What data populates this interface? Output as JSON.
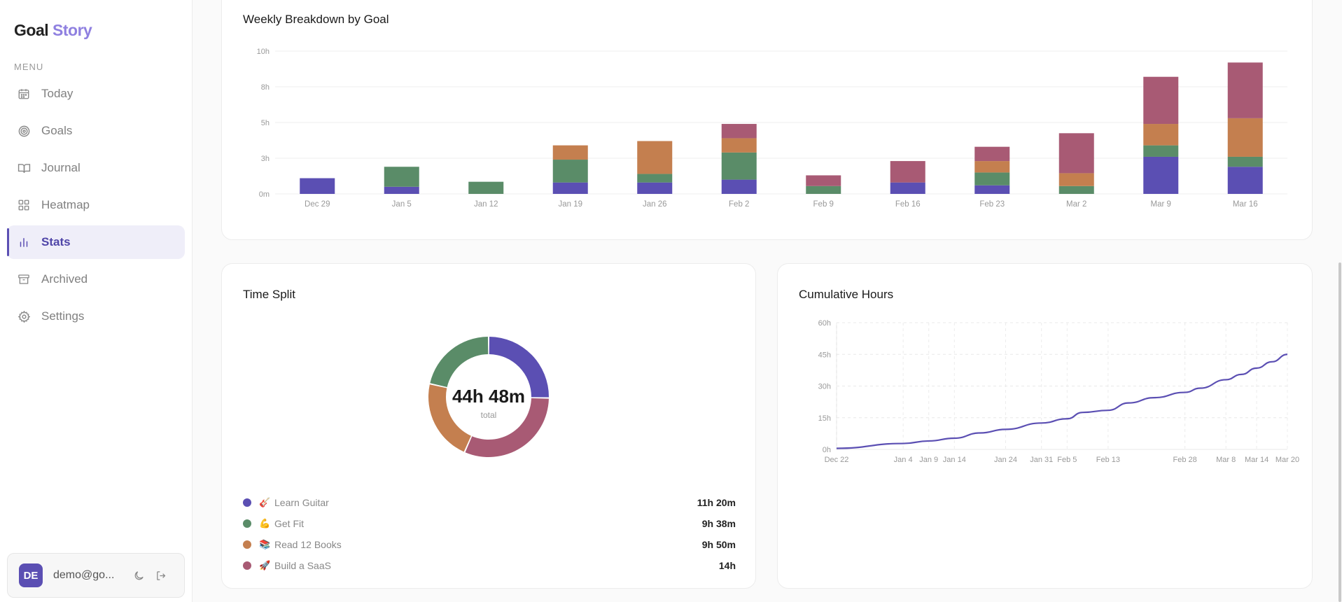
{
  "brand": {
    "part1": "Goal",
    "part2": "Story"
  },
  "sidebar": {
    "menu_label": "MENU",
    "items": [
      {
        "label": "Today",
        "icon": "calendar-icon"
      },
      {
        "label": "Goals",
        "icon": "target-icon"
      },
      {
        "label": "Journal",
        "icon": "book-icon"
      },
      {
        "label": "Heatmap",
        "icon": "grid-icon"
      },
      {
        "label": "Stats",
        "icon": "bar-chart-icon",
        "active": true
      },
      {
        "label": "Archived",
        "icon": "archive-icon"
      },
      {
        "label": "Settings",
        "icon": "gear-icon"
      }
    ]
  },
  "user": {
    "initials": "DE",
    "email": "demo@go..."
  },
  "colors": {
    "guitar": "#5b4fb3",
    "fit": "#5a8c68",
    "books": "#c47f4f",
    "saas": "#a85a74",
    "accent": "#5b4fb3"
  },
  "weekly": {
    "title": "Weekly Breakdown by Goal",
    "chart_data": {
      "type": "bar",
      "stacked": true,
      "categories": [
        "Dec 29",
        "Jan 5",
        "Jan 12",
        "Jan 19",
        "Jan 26",
        "Feb 2",
        "Feb 9",
        "Feb 16",
        "Feb 23",
        "Mar 2",
        "Mar 9",
        "Mar 16"
      ],
      "y_ticks": [
        "0m",
        "3h",
        "5h",
        "8h",
        "10h"
      ],
      "ylim": [
        0,
        10
      ],
      "series": [
        {
          "name": "Learn Guitar",
          "color": "#5b4fb3",
          "values": [
            1.1,
            0.5,
            0,
            0.8,
            0.8,
            1.0,
            0,
            0.8,
            0.6,
            0,
            2.6,
            1.9
          ]
        },
        {
          "name": "Get Fit",
          "color": "#5a8c68",
          "values": [
            0,
            1.4,
            0.85,
            1.6,
            0.6,
            1.9,
            0.55,
            0,
            0.9,
            0.55,
            0.8,
            0.7
          ]
        },
        {
          "name": "Read 12 Books",
          "color": "#c47f4f",
          "values": [
            0,
            0,
            0,
            1.0,
            2.3,
            1.0,
            0,
            0,
            0.8,
            0.9,
            1.5,
            2.7
          ]
        },
        {
          "name": "Build a SaaS",
          "color": "#a85a74",
          "values": [
            0,
            0,
            0,
            0,
            0,
            1.0,
            0.75,
            1.5,
            1.0,
            2.8,
            3.3,
            3.9
          ]
        }
      ]
    }
  },
  "split": {
    "title": "Time Split",
    "total": "44h 48m",
    "total_label": "total",
    "chart_data": {
      "type": "pie",
      "donut": true,
      "labels": [
        "Learn Guitar",
        "Build a SaaS",
        "Read 12 Books",
        "Get Fit"
      ],
      "values": [
        11.33,
        14,
        9.83,
        9.63
      ]
    },
    "legend": [
      {
        "name": "Learn Guitar",
        "emoji": "🎸",
        "value": "11h 20m",
        "color": "#5b4fb3"
      },
      {
        "name": "Get Fit",
        "emoji": "💪",
        "value": "9h 38m",
        "color": "#5a8c68"
      },
      {
        "name": "Read 12 Books",
        "emoji": "📚",
        "value": "9h 50m",
        "color": "#c47f4f"
      },
      {
        "name": "Build a SaaS",
        "emoji": "🚀",
        "value": "14h",
        "color": "#a85a74"
      }
    ]
  },
  "cumulative": {
    "title": "Cumulative Hours",
    "chart_data": {
      "type": "line",
      "y_ticks": [
        "0h",
        "15h",
        "30h",
        "45h",
        "60h"
      ],
      "ylim": [
        0,
        60
      ],
      "x_ticks": [
        "Dec 22",
        "Jan 4",
        "Jan 9",
        "Jan 14",
        "Jan 24",
        "Jan 31",
        "Feb 5",
        "Feb 13",
        "Feb 28",
        "Mar 8",
        "Mar 14",
        "Mar 20"
      ],
      "x_dates": [
        "2024-12-22",
        "2025-01-04",
        "2025-01-09",
        "2025-01-14",
        "2025-01-19",
        "2025-01-24",
        "2025-01-31",
        "2025-02-05",
        "2025-02-08",
        "2025-02-13",
        "2025-02-17",
        "2025-02-22",
        "2025-02-28",
        "2025-03-03",
        "2025-03-08",
        "2025-03-11",
        "2025-03-14",
        "2025-03-17",
        "2025-03-20"
      ],
      "y": [
        0.5,
        2.8,
        4.0,
        5.3,
        7.8,
        9.5,
        12.5,
        14.5,
        17.5,
        18.5,
        22.0,
        24.5,
        27.0,
        29.0,
        33.0,
        35.5,
        38.5,
        41.5,
        45.0
      ]
    }
  }
}
